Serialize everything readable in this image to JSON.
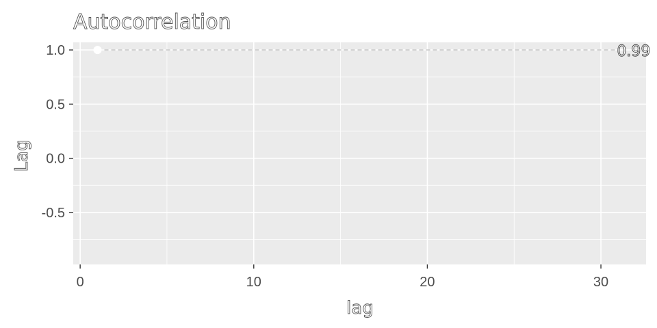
{
  "chart_data": {
    "type": "line",
    "title": "Autocorrelation",
    "xlabel": "lag",
    "ylabel": "Lag",
    "xlim": [
      -0.4,
      32.6
    ],
    "ylim": [
      -0.98,
      1.07
    ],
    "x_ticks": [
      0,
      10,
      20,
      30
    ],
    "x_tick_labels": [
      "0",
      "10",
      "20",
      "30"
    ],
    "y_ticks": [
      1.0,
      0.5,
      0.0,
      -0.5
    ],
    "y_tick_labels": [
      "1.0",
      "0.5",
      "0.0",
      "-0.5"
    ],
    "grid": true,
    "series": [
      {
        "x": [
          1,
          31
        ],
        "y": [
          1.0,
          1.0
        ],
        "style": "dashed",
        "color": "#c8c8c8"
      }
    ],
    "points": [
      {
        "x": 1,
        "y": 1.0,
        "color": "#ffffff"
      }
    ],
    "annotations": [
      {
        "x": 31,
        "y": 1.0,
        "text": "0.99"
      }
    ],
    "colors": {
      "panel": "#ebebeb",
      "grid": "#ffffff",
      "tick": "#4d4d4d"
    }
  }
}
